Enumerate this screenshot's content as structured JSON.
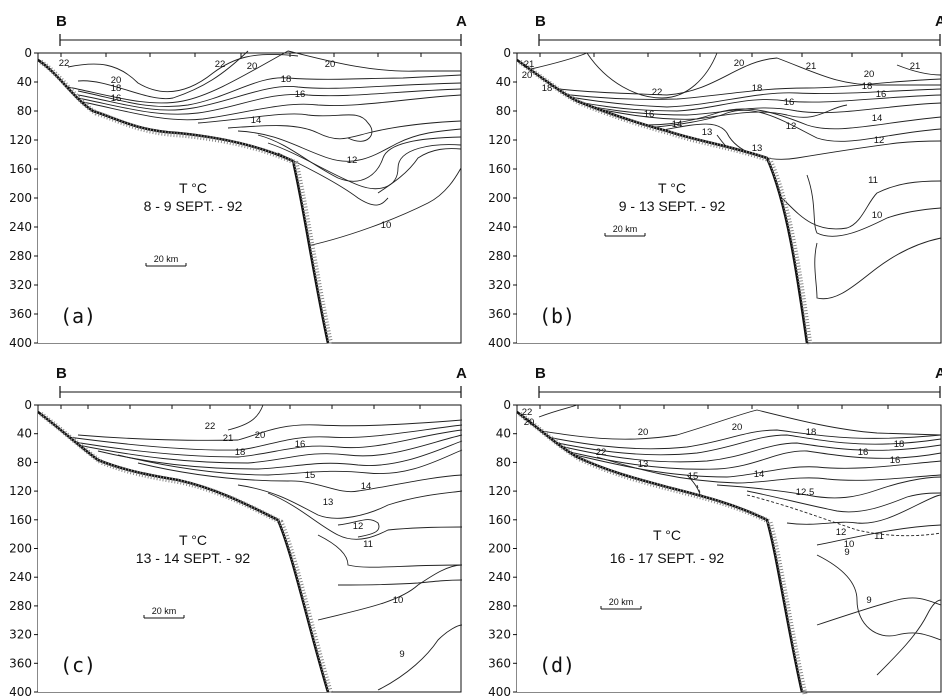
{
  "chart_data": [
    {
      "type": "contour",
      "panel": "(a)",
      "title": [
        "T °C",
        "8 - 9  SEPT. - 92"
      ],
      "left_label": "B",
      "right_label": "A",
      "y_ticks": [
        0,
        40,
        80,
        120,
        160,
        200,
        240,
        280,
        320,
        360,
        400
      ],
      "ylim": [
        0,
        400
      ],
      "scale_bar": "20 km",
      "isotherm_labels": [
        "22",
        "22",
        "20",
        "20",
        "20",
        "18",
        "18",
        "16",
        "16",
        "14",
        "12",
        "10"
      ]
    },
    {
      "type": "contour",
      "panel": "(b)",
      "title": [
        "T °C",
        "9 - 13  SEPT. - 92"
      ],
      "left_label": "B",
      "right_label": "A",
      "y_ticks": [
        0,
        40,
        80,
        120,
        160,
        200,
        240,
        280,
        320,
        360,
        400
      ],
      "ylim": [
        0,
        400
      ],
      "scale_bar": "20 km",
      "isotherm_labels": [
        "21",
        "20",
        "18",
        "22",
        "20",
        "21",
        "20",
        "21",
        "18",
        "18",
        "16",
        "16",
        "16",
        "14",
        "13",
        "12",
        "14",
        "13",
        "12",
        "11",
        "10"
      ]
    },
    {
      "type": "contour",
      "panel": "(c)",
      "title": [
        "T °C",
        "13 - 14  SEPT. - 92"
      ],
      "left_label": "B",
      "right_label": "A",
      "y_ticks": [
        0,
        40,
        80,
        120,
        160,
        200,
        240,
        280,
        320,
        360,
        400
      ],
      "ylim": [
        0,
        400
      ],
      "scale_bar": "20 km",
      "isotherm_labels": [
        "22",
        "21",
        "20",
        "18",
        "16",
        "15",
        "14",
        "13",
        "12",
        "11",
        "10",
        "9"
      ]
    },
    {
      "type": "contour",
      "panel": "(d)",
      "title": [
        "T °C",
        "16 - 17  SEPT. - 92"
      ],
      "left_label": "B",
      "right_label": "A",
      "y_ticks": [
        0,
        40,
        80,
        120,
        160,
        200,
        240,
        280,
        320,
        360,
        400
      ],
      "ylim": [
        0,
        400
      ],
      "scale_bar": "20 km",
      "isotherm_labels": [
        "22",
        "20",
        "22",
        "20",
        "20",
        "18",
        "18",
        "16",
        "16",
        "13",
        "15",
        "14",
        "12.5",
        "12",
        "11",
        "10",
        "9"
      ]
    }
  ]
}
